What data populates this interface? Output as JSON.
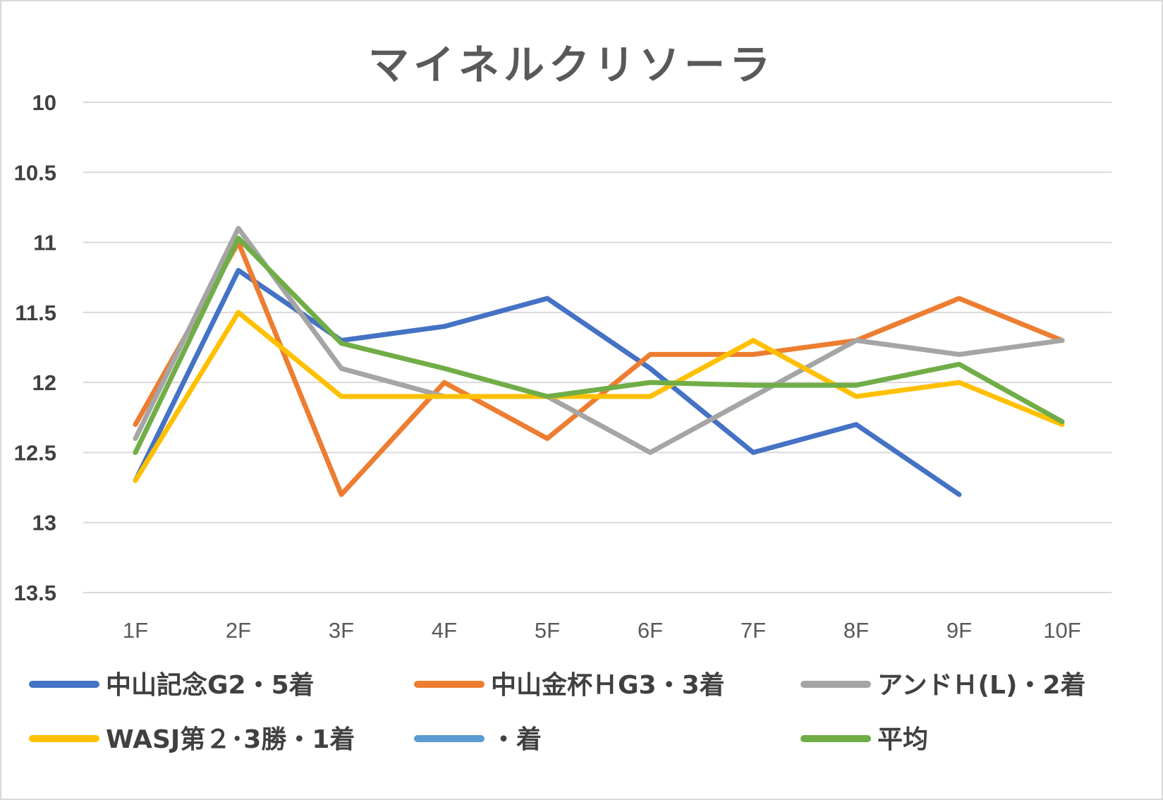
{
  "chart_data": {
    "type": "line",
    "title": "マイネルクリソーラ",
    "xlabel": "",
    "ylabel": "",
    "categories": [
      "1F",
      "2F",
      "3F",
      "4F",
      "5F",
      "6F",
      "7F",
      "8F",
      "9F",
      "10F"
    ],
    "y_tick_labels": [
      "10",
      "10.5",
      "11",
      "11.5",
      "12",
      "12.5",
      "13",
      "13.5"
    ],
    "ylim": [
      10,
      13.5
    ],
    "y_reversed": true,
    "grid": true,
    "legend_position": "bottom",
    "series": [
      {
        "name": "中山記念G2・5着",
        "color": "#4472C4",
        "values": [
          12.7,
          11.2,
          11.7,
          11.6,
          11.4,
          11.9,
          12.5,
          12.3,
          12.8,
          null
        ]
      },
      {
        "name": "中山金杯ＨG3・3着",
        "color": "#ED7D31",
        "values": [
          12.3,
          11.0,
          12.8,
          12.0,
          12.4,
          11.8,
          11.8,
          11.7,
          11.4,
          11.7
        ]
      },
      {
        "name": "アンドＨ(L)・2着",
        "color": "#A5A5A5",
        "values": [
          12.4,
          10.9,
          11.9,
          12.1,
          12.1,
          12.5,
          12.1,
          11.7,
          11.8,
          11.7
        ]
      },
      {
        "name": "WASJ第２･3勝・1着",
        "color": "#FFC000",
        "values": [
          12.7,
          11.5,
          12.1,
          12.1,
          12.1,
          12.1,
          11.7,
          12.1,
          12.0,
          12.3
        ]
      },
      {
        "name": "・着",
        "color": "#5B9BD5",
        "values": [
          null,
          null,
          null,
          null,
          null,
          null,
          null,
          null,
          null,
          null
        ]
      },
      {
        "name": "平均",
        "color": "#70AD47",
        "values": [
          12.5,
          10.97,
          11.72,
          11.9,
          12.1,
          12.0,
          12.02,
          12.02,
          11.87,
          12.28
        ]
      }
    ]
  }
}
